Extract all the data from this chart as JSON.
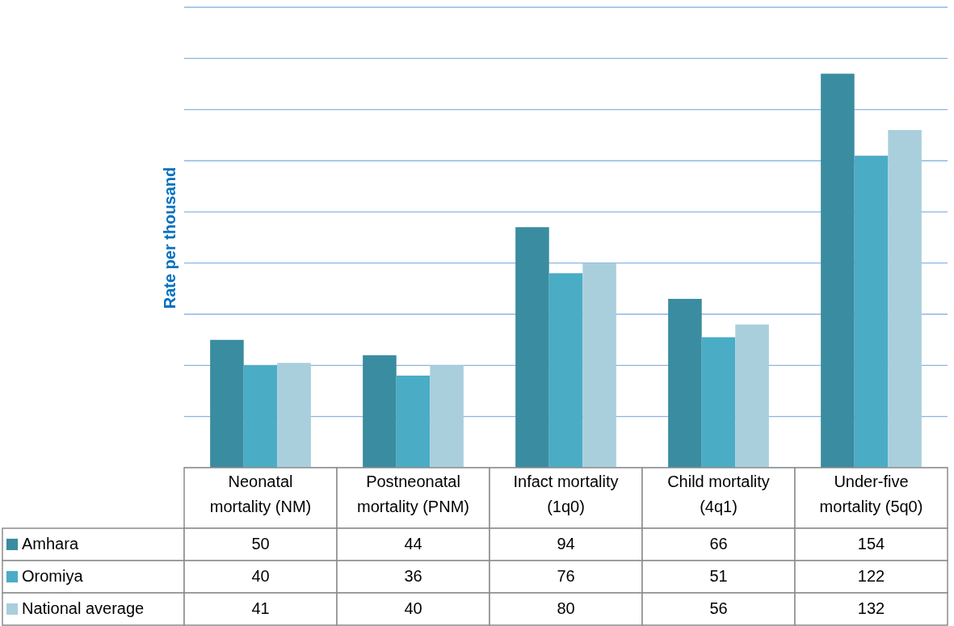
{
  "chart_data": {
    "type": "bar",
    "ylabel": "Rate per thousand",
    "categories": [
      "Neonatal mortality (NM)",
      "Postneonatal mortality (PNM)",
      "Infact mortality (1q0)",
      "Child mortality (4q1)",
      "Under-five mortality (5q0)"
    ],
    "series": [
      {
        "name": "Amhara",
        "color": "#3a8ca0",
        "values": [
          50,
          44,
          94,
          66,
          154
        ]
      },
      {
        "name": "Oromiya",
        "color": "#4bacc6",
        "values": [
          40,
          36,
          76,
          51,
          122
        ]
      },
      {
        "name": "National average",
        "color": "#a9cfdc",
        "values": [
          41,
          40,
          80,
          56,
          132
        ]
      }
    ],
    "ylim": [
      0,
      180
    ],
    "yticks": [
      {
        "value": 0,
        "label": null
      },
      {
        "value": 20,
        "label": null
      },
      {
        "value": 40,
        "label": null
      },
      {
        "value": 60,
        "label": null
      },
      {
        "value": 80,
        "label": null
      },
      {
        "value": 100,
        "label": null
      },
      {
        "value": 120,
        "label": null
      },
      {
        "value": 140,
        "label": null
      },
      {
        "value": 160,
        "label": null
      },
      {
        "value": 180,
        "label": null
      }
    ],
    "grid": "y",
    "tick_labels": "x",
    "data_labels": true,
    "legend": "bottom"
  }
}
